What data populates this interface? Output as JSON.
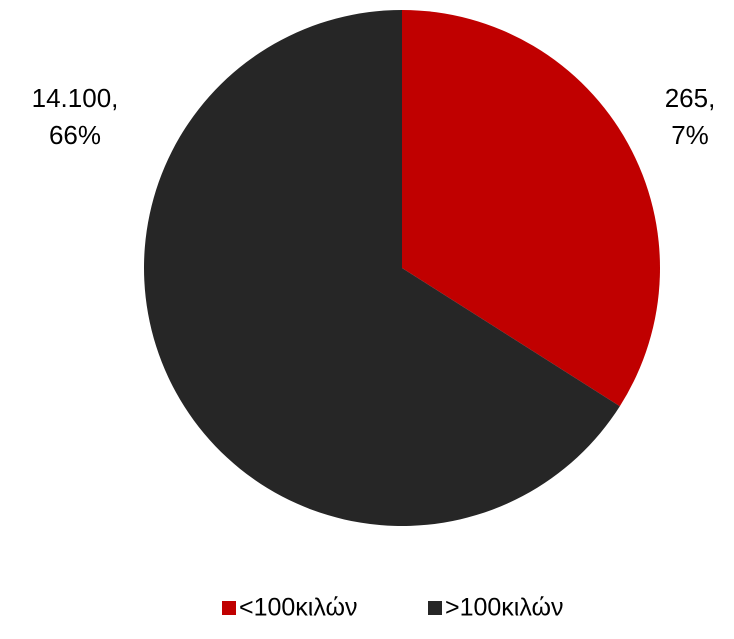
{
  "chart_data": {
    "type": "pie",
    "categories": [
      "<100κιλών",
      ">100κιλών"
    ],
    "values": [
      265,
      14100
    ],
    "value_labels": [
      "265,",
      "14.100,"
    ],
    "percents": [
      7,
      66
    ],
    "percent_labels": [
      "7%",
      "66%"
    ],
    "colors": [
      "#c00000",
      "#262626"
    ],
    "legend": "bottom"
  }
}
